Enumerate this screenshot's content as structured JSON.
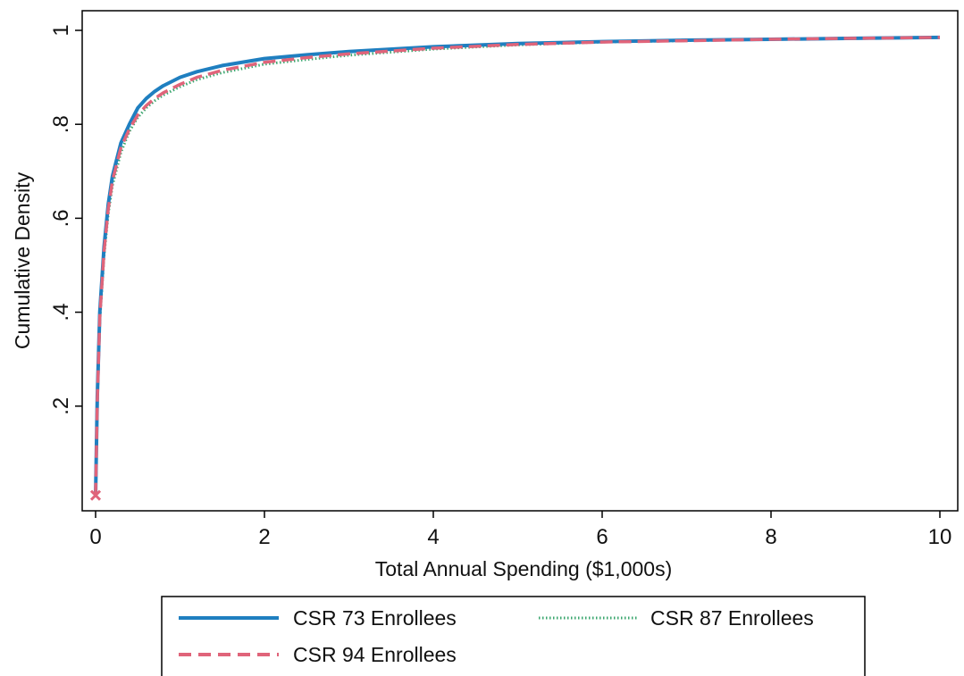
{
  "chart_data": {
    "type": "line",
    "title": "",
    "xlabel": "Total Annual Spending ($1,000s)",
    "ylabel": "Cumulative Density",
    "xlim": [
      0,
      10
    ],
    "ylim": [
      0,
      1
    ],
    "grid": false,
    "x_ticks": [
      {
        "value": 0,
        "label": "0"
      },
      {
        "value": 2,
        "label": "2"
      },
      {
        "value": 4,
        "label": "4"
      },
      {
        "value": 6,
        "label": "6"
      },
      {
        "value": 8,
        "label": "8"
      },
      {
        "value": 10,
        "label": "10"
      }
    ],
    "y_ticks": [
      {
        "value": 0.2,
        "label": ".2"
      },
      {
        "value": 0.4,
        "label": ".4"
      },
      {
        "value": 0.6,
        "label": ".6"
      },
      {
        "value": 0.8,
        "label": ".8"
      },
      {
        "value": 1.0,
        "label": "1"
      }
    ],
    "legend_position": "bottom",
    "series": [
      {
        "name": "CSR 73 Enrollees",
        "color": "#1f7fc0",
        "style": "solid",
        "x": [
          0,
          0.02,
          0.05,
          0.1,
          0.15,
          0.2,
          0.3,
          0.4,
          0.5,
          0.6,
          0.7,
          0.8,
          1.0,
          1.2,
          1.5,
          2.0,
          2.5,
          3.0,
          4.0,
          5.0,
          6.0,
          7.0,
          8.0,
          9.0,
          10.0
        ],
        "y": [
          0.01,
          0.22,
          0.4,
          0.54,
          0.63,
          0.69,
          0.76,
          0.8,
          0.835,
          0.855,
          0.87,
          0.882,
          0.9,
          0.912,
          0.925,
          0.94,
          0.948,
          0.955,
          0.965,
          0.972,
          0.976,
          0.979,
          0.981,
          0.983,
          0.985
        ]
      },
      {
        "name": "CSR 87 Enrollees",
        "color": "#3aa66e",
        "style": "dotted",
        "x": [
          0,
          0.02,
          0.05,
          0.1,
          0.15,
          0.2,
          0.3,
          0.4,
          0.5,
          0.6,
          0.7,
          0.8,
          1.0,
          1.2,
          1.5,
          2.0,
          2.5,
          3.0,
          4.0,
          5.0,
          6.0,
          7.0,
          8.0,
          9.0,
          10.0
        ],
        "y": [
          0.01,
          0.2,
          0.38,
          0.52,
          0.61,
          0.67,
          0.74,
          0.785,
          0.815,
          0.835,
          0.85,
          0.862,
          0.88,
          0.895,
          0.91,
          0.928,
          0.938,
          0.947,
          0.96,
          0.969,
          0.975,
          0.978,
          0.981,
          0.983,
          0.985
        ]
      },
      {
        "name": "CSR 94 Enrollees",
        "color": "#e0647a",
        "style": "dashed",
        "x": [
          0,
          0.02,
          0.05,
          0.1,
          0.15,
          0.2,
          0.3,
          0.4,
          0.5,
          0.6,
          0.7,
          0.8,
          1.0,
          1.2,
          1.5,
          2.0,
          2.5,
          3.0,
          4.0,
          5.0,
          6.0,
          7.0,
          8.0,
          9.0,
          10.0
        ],
        "y": [
          0.01,
          0.21,
          0.39,
          0.53,
          0.62,
          0.68,
          0.75,
          0.79,
          0.82,
          0.84,
          0.855,
          0.867,
          0.885,
          0.9,
          0.915,
          0.932,
          0.942,
          0.95,
          0.962,
          0.97,
          0.975,
          0.978,
          0.981,
          0.983,
          0.985
        ]
      }
    ]
  },
  "legend": {
    "items": [
      {
        "label": "CSR 73 Enrollees"
      },
      {
        "label": "CSR 87 Enrollees"
      },
      {
        "label": "CSR 94 Enrollees"
      }
    ]
  }
}
